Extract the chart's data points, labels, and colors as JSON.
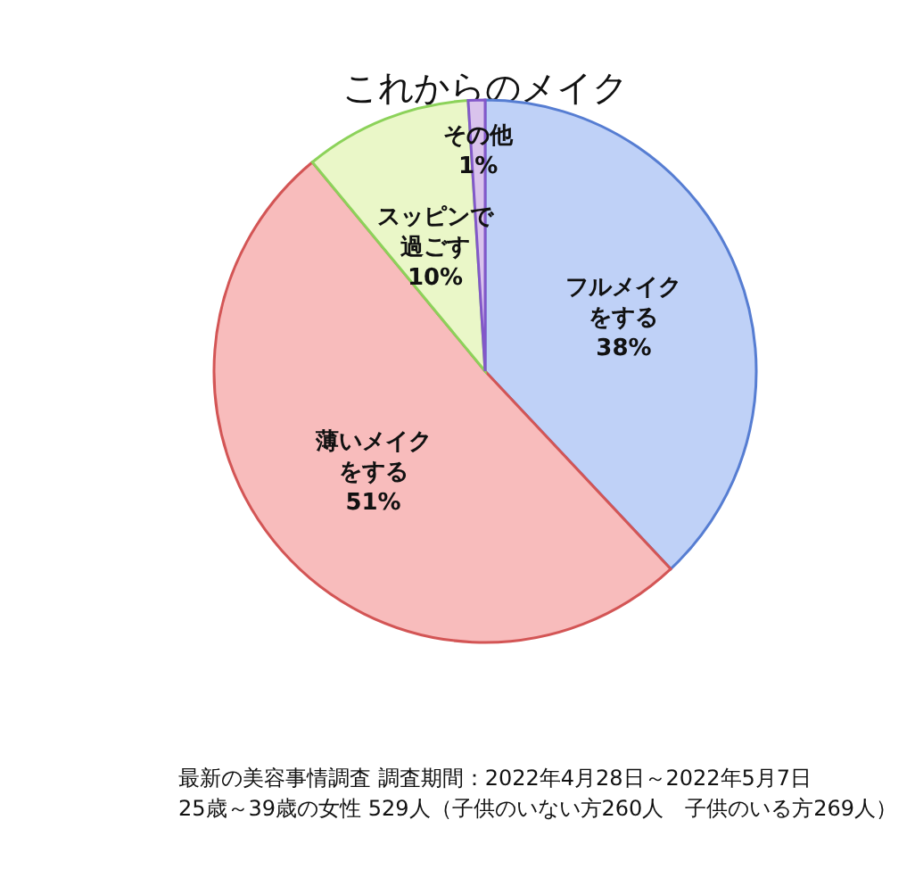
{
  "chart_data": {
    "type": "pie",
    "title": "これからのメイク",
    "categories": [
      "フルメイクをする",
      "薄いメイクをする",
      "スッピンで過ごす",
      "その他"
    ],
    "values": [
      38,
      51,
      10,
      1
    ],
    "value_labels": [
      "38%",
      "51%",
      "10%",
      "1%"
    ],
    "colors": [
      "#bfd1f7",
      "#f8bcbc",
      "#eaf7c8",
      "#d9c3ec"
    ],
    "legend": false,
    "annotations": [
      "最新の美容事情調査 調査期間：2022年4月28日～2022年5月7日",
      "25歳～39歳の女性 529人（子供のいない方260人　子供のいる方269人）"
    ]
  }
}
